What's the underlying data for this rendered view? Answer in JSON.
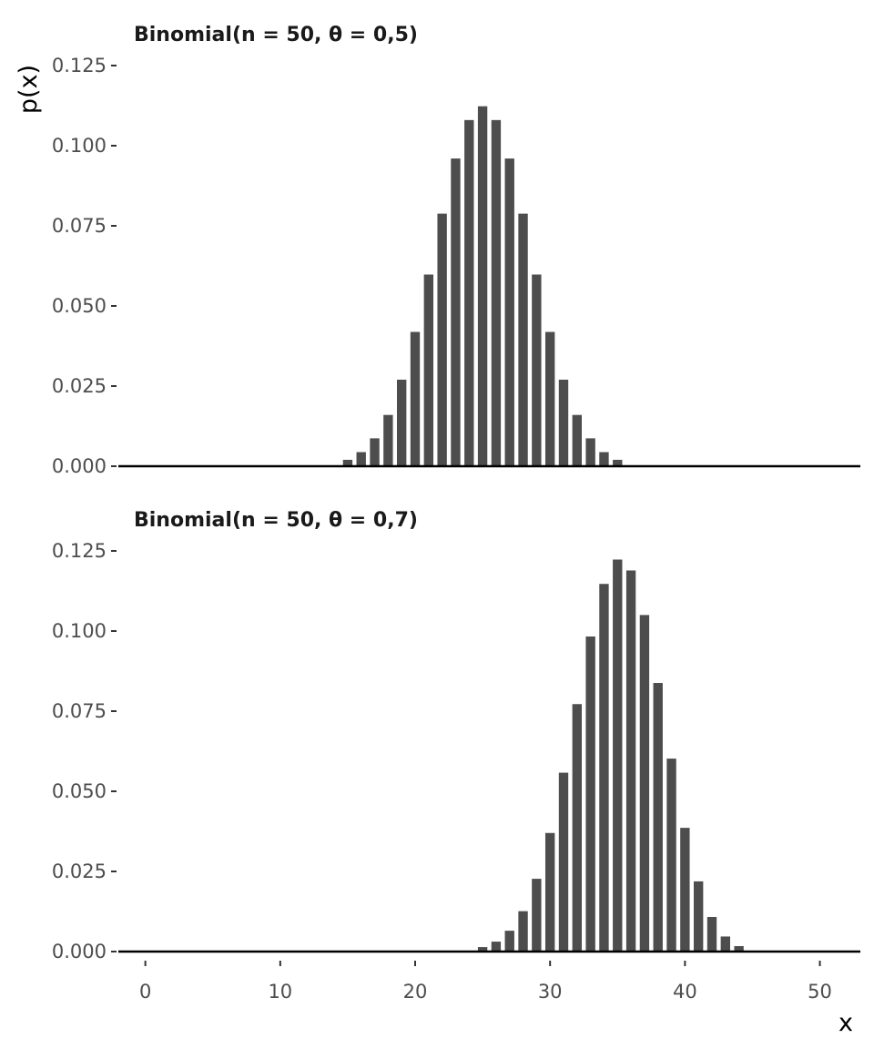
{
  "chart_data": [
    {
      "type": "bar",
      "title": "Binomial(n = 50, θ = 0,5)",
      "ylabel": "p(x)",
      "xlabel": "",
      "ylim": [
        0,
        0.125
      ],
      "xlim": [
        -2,
        53
      ],
      "yticks": [
        "0.000",
        "0.025",
        "0.050",
        "0.075",
        "0.100",
        "0.125"
      ],
      "grid": false,
      "bar_color": "#4d4d4d",
      "x": [
        15,
        16,
        17,
        18,
        19,
        20,
        21,
        22,
        23,
        24,
        25,
        26,
        27,
        28,
        29,
        30,
        31,
        32,
        33,
        34,
        35
      ],
      "values": [
        0.002,
        0.0044,
        0.0087,
        0.016,
        0.027,
        0.0419,
        0.0598,
        0.0788,
        0.096,
        0.108,
        0.1123,
        0.108,
        0.096,
        0.0788,
        0.0598,
        0.0419,
        0.027,
        0.016,
        0.0087,
        0.0044,
        0.002
      ]
    },
    {
      "type": "bar",
      "title": "Binomial(n = 50, θ = 0,7)",
      "ylabel": "",
      "xlabel": "x",
      "ylim": [
        0,
        0.125
      ],
      "xlim": [
        -2,
        53
      ],
      "yticks": [
        "0.000",
        "0.025",
        "0.050",
        "0.075",
        "0.100",
        "0.125"
      ],
      "xticks": [
        "0",
        "10",
        "20",
        "30",
        "40",
        "50"
      ],
      "grid": false,
      "bar_color": "#4d4d4d",
      "x": [
        25,
        26,
        27,
        28,
        29,
        30,
        31,
        32,
        33,
        34,
        35,
        36,
        37,
        38,
        39,
        40,
        41,
        42,
        43,
        44
      ],
      "values": [
        0.0014,
        0.0031,
        0.0065,
        0.0126,
        0.0227,
        0.037,
        0.0558,
        0.0772,
        0.0983,
        0.1147,
        0.1223,
        0.1189,
        0.105,
        0.0838,
        0.0602,
        0.0386,
        0.0219,
        0.0108,
        0.0047,
        0.0017
      ]
    }
  ]
}
